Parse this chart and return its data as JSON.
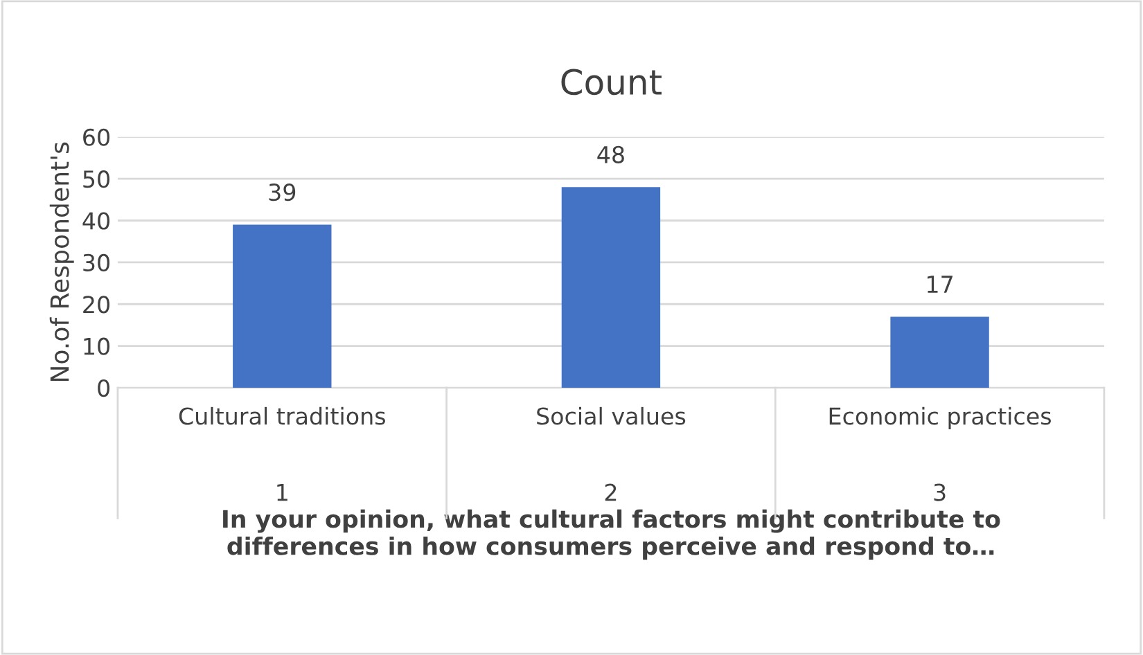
{
  "chart_data": {
    "type": "bar",
    "title": "Count",
    "ylabel": "No.of Respondent's",
    "xlabel": "In your opinion, what cultural factors might contribute to\ndifferences in how consumers perceive and respond to…",
    "categories": [
      "Cultural traditions\n\n1",
      "Social values\n\n2",
      "Economic practices\n\n3"
    ],
    "values": [
      39,
      48,
      17
    ],
    "color": "#4472c4",
    "ylim": [
      0,
      60
    ],
    "yticks": [
      0,
      10,
      20,
      30,
      40,
      50,
      60
    ],
    "grid": "y",
    "data_labels": true
  }
}
